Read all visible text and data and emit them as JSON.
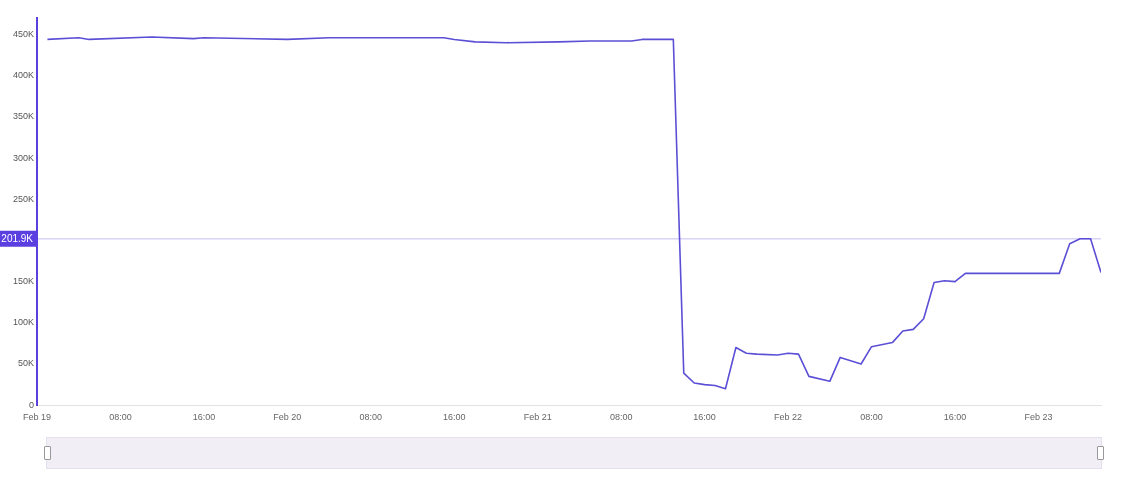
{
  "chart_data": {
    "type": "line",
    "x": [
      "--02-19T01:00",
      "--02-19T04:00",
      "--02-19T05:00",
      "--02-19T11:00",
      "--02-19T15:00",
      "--02-19T16:00",
      "--02-20T00:00",
      "--02-20T04:00",
      "--02-20T15:00",
      "--02-20T16:00",
      "--02-20T18:00",
      "--02-20T21:00",
      "--02-21T02:00",
      "--02-21T05:00",
      "--02-21T09:00",
      "--02-21T10:00",
      "--02-21T13:00",
      "--02-21T14:00",
      "--02-21T15:00",
      "--02-21T16:00",
      "--02-21T17:00",
      "--02-21T18:00",
      "--02-21T19:00",
      "--02-21T20:00",
      "--02-21T21:00",
      "--02-21T23:00",
      "--02-22T00:00",
      "--02-22T01:00",
      "--02-22T02:00",
      "--02-22T04:00",
      "--02-22T05:00",
      "--02-22T07:00",
      "--02-22T08:00",
      "--02-22T10:00",
      "--02-22T11:00",
      "--02-22T12:00",
      "--02-22T13:00",
      "--02-22T14:00",
      "--02-22T15:00",
      "--02-22T16:00",
      "--02-22T17:00",
      "--02-23T02:00",
      "--02-23T03:00",
      "--02-23T04:00",
      "--02-23T05:00",
      "--02-23T06:00"
    ],
    "series": [
      {
        "color": "#5b4fd6",
        "values": [
          444000,
          446000,
          444000,
          447000,
          445000,
          446000,
          444000,
          446000,
          446000,
          444000,
          441000,
          440000,
          441000,
          442000,
          442000,
          444000,
          444000,
          39000,
          27000,
          25000,
          24000,
          20000,
          70000,
          63000,
          62000,
          61000,
          63000,
          62000,
          35000,
          29000,
          58000,
          50000,
          71000,
          76000,
          90000,
          92000,
          105000,
          149000,
          151000,
          150000,
          160000,
          160000,
          196000,
          202000,
          202000,
          161000
        ]
      }
    ],
    "xlim": [
      "--02-19T00:00",
      "--02-23T06:00"
    ],
    "xticks": [
      {
        "value": "--02-19T00:00",
        "label": "Feb 19"
      },
      {
        "value": "--02-19T08:00",
        "label": "08:00"
      },
      {
        "value": "--02-19T16:00",
        "label": "16:00"
      },
      {
        "value": "--02-20T00:00",
        "label": "Feb 20"
      },
      {
        "value": "--02-20T08:00",
        "label": "08:00"
      },
      {
        "value": "--02-20T16:00",
        "label": "16:00"
      },
      {
        "value": "--02-21T00:00",
        "label": "Feb 21"
      },
      {
        "value": "--02-21T08:00",
        "label": "08:00"
      },
      {
        "value": "--02-21T16:00",
        "label": "16:00"
      },
      {
        "value": "--02-22T00:00",
        "label": "Feb 22"
      },
      {
        "value": "--02-22T08:00",
        "label": "08:00"
      },
      {
        "value": "--02-22T16:00",
        "label": "16:00"
      },
      {
        "value": "--02-23T00:00",
        "label": "Feb 23"
      }
    ],
    "ylim": [
      0,
      470000
    ],
    "yticks": [
      0,
      {
        "value": 50000,
        "label": "50K"
      },
      {
        "value": 100000,
        "label": "100K"
      },
      {
        "value": 150000,
        "label": "150K"
      },
      {
        "value": 250000,
        "label": "250K"
      },
      {
        "value": 300000,
        "label": "300K"
      },
      {
        "value": 350000,
        "label": "350K"
      },
      {
        "value": 400000,
        "label": "400K"
      },
      {
        "value": 450000,
        "label": "450K"
      }
    ],
    "ref_lines": [
      {
        "axis": "y",
        "value": 201900,
        "label": "201.9K",
        "color": "#5b3fe0"
      }
    ],
    "grid": false,
    "legend": false,
    "marker": "none",
    "line_style": "solid"
  }
}
